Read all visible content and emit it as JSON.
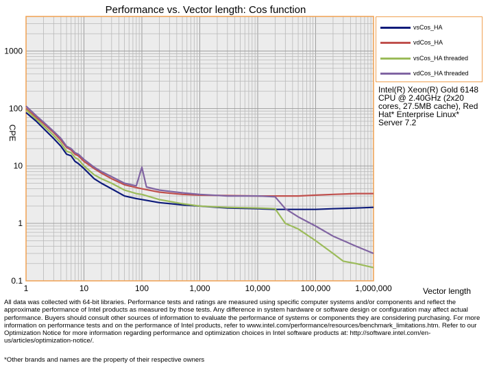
{
  "chart_data": {
    "type": "line",
    "title": "Performance vs. Vector length: Cos function",
    "xlabel": "Vector length",
    "ylabel": "CPE",
    "xscale": "log",
    "yscale": "log",
    "xlim": [
      1,
      1000000
    ],
    "ylim": [
      0.1,
      4000
    ],
    "grid": true,
    "legend_position": "right",
    "x_ticks": [
      "1",
      "10",
      "100",
      "1,000",
      "10,000",
      "100,000",
      "1,000,000"
    ],
    "y_ticks": [
      "0.1",
      "1",
      "10",
      "100",
      "1000"
    ],
    "series": [
      {
        "name": "vsCos_HA",
        "color": "#0c1a7a",
        "points": [
          [
            1,
            85
          ],
          [
            1.5,
            60
          ],
          [
            2,
            45
          ],
          [
            3,
            30
          ],
          [
            4,
            22
          ],
          [
            5,
            16
          ],
          [
            6,
            15
          ],
          [
            7,
            12
          ],
          [
            8,
            11
          ],
          [
            10,
            9
          ],
          [
            15,
            6
          ],
          [
            20,
            5
          ],
          [
            30,
            4
          ],
          [
            50,
            3
          ],
          [
            80,
            2.7
          ],
          [
            100,
            2.6
          ],
          [
            200,
            2.3
          ],
          [
            500,
            2.1
          ],
          [
            1000,
            2.0
          ],
          [
            3000,
            1.85
          ],
          [
            10000,
            1.8
          ],
          [
            20000,
            1.75
          ],
          [
            50000,
            1.75
          ],
          [
            100000,
            1.75
          ],
          [
            200000,
            1.8
          ],
          [
            500000,
            1.85
          ],
          [
            1000000,
            1.9
          ]
        ]
      },
      {
        "name": "vdCos_HA",
        "color": "#c0504d",
        "points": [
          [
            1,
            100
          ],
          [
            1.5,
            70
          ],
          [
            2,
            55
          ],
          [
            3,
            38
          ],
          [
            4,
            28
          ],
          [
            5,
            21
          ],
          [
            6,
            19
          ],
          [
            7,
            16
          ],
          [
            8,
            15
          ],
          [
            10,
            12
          ],
          [
            15,
            9
          ],
          [
            20,
            7.5
          ],
          [
            30,
            6
          ],
          [
            50,
            4.7
          ],
          [
            80,
            4.2
          ],
          [
            100,
            4.0
          ],
          [
            200,
            3.5
          ],
          [
            500,
            3.2
          ],
          [
            1000,
            3.1
          ],
          [
            3000,
            3.05
          ],
          [
            10000,
            3.0
          ],
          [
            20000,
            3.0
          ],
          [
            50000,
            3.0
          ],
          [
            100000,
            3.1
          ],
          [
            200000,
            3.2
          ],
          [
            500000,
            3.3
          ],
          [
            1000000,
            3.3
          ]
        ]
      },
      {
        "name": "vsCos_HA threaded",
        "color": "#9bbb59",
        "points": [
          [
            1,
            95
          ],
          [
            1.5,
            65
          ],
          [
            2,
            50
          ],
          [
            3,
            34
          ],
          [
            4,
            25
          ],
          [
            5,
            18
          ],
          [
            6,
            17
          ],
          [
            7,
            14
          ],
          [
            8,
            13
          ],
          [
            10,
            10
          ],
          [
            15,
            7
          ],
          [
            20,
            6
          ],
          [
            30,
            5
          ],
          [
            50,
            3.8
          ],
          [
            80,
            3.3
          ],
          [
            100,
            3.2
          ],
          [
            200,
            2.6
          ],
          [
            500,
            2.2
          ],
          [
            1000,
            2.0
          ],
          [
            3000,
            1.9
          ],
          [
            10000,
            1.85
          ],
          [
            20000,
            1.8
          ],
          [
            30000,
            1.0
          ],
          [
            50000,
            0.8
          ],
          [
            100000,
            0.5
          ],
          [
            200000,
            0.3
          ],
          [
            300000,
            0.22
          ],
          [
            500000,
            0.2
          ],
          [
            1000000,
            0.17
          ]
        ]
      },
      {
        "name": "vdCos_HA threaded",
        "color": "#8064a2",
        "points": [
          [
            1,
            110
          ],
          [
            1.5,
            75
          ],
          [
            2,
            58
          ],
          [
            3,
            40
          ],
          [
            4,
            30
          ],
          [
            5,
            22
          ],
          [
            6,
            20
          ],
          [
            7,
            17
          ],
          [
            8,
            16
          ],
          [
            10,
            13
          ],
          [
            15,
            9.5
          ],
          [
            20,
            8
          ],
          [
            30,
            6.5
          ],
          [
            50,
            5
          ],
          [
            80,
            4.5
          ],
          [
            100,
            9.5
          ],
          [
            120,
            4.3
          ],
          [
            200,
            3.8
          ],
          [
            500,
            3.4
          ],
          [
            1000,
            3.2
          ],
          [
            3000,
            3.0
          ],
          [
            10000,
            3.0
          ],
          [
            20000,
            2.9
          ],
          [
            30000,
            1.8
          ],
          [
            50000,
            1.3
          ],
          [
            100000,
            0.9
          ],
          [
            200000,
            0.6
          ],
          [
            500000,
            0.4
          ],
          [
            1000000,
            0.3
          ]
        ]
      }
    ]
  },
  "cpu_note": "Intel(R) Xeon(R) Gold 6148 CPU @ 2.40GHz (2x20 cores, 27.5MB cache), Red Hat* Enterprise Linux* Server 7.2",
  "disclaimer": "All data was collected with 64-bit libraries. Performance tests and ratings are measured using specific computer systems and/or components and reflect the approximate performance of Intel products as measured by those tests. Any difference in system hardware or software design or configuration may affect actual performance. Buyers should consult other sources of information to evaluate the performance of systems or components they are considering purchasing. For more information on performance tests and on the performance of Intel products, refer to www.intel.com/performance/resources/benchmark_limitations.htm. Refer to our Optimization Notice for more information regarding performance and optimization choices in Intel software products at: http://software.intel.com/en-us/articles/optimization-notice/.",
  "footnote": "*Other brands and names are the property of their respective owners"
}
